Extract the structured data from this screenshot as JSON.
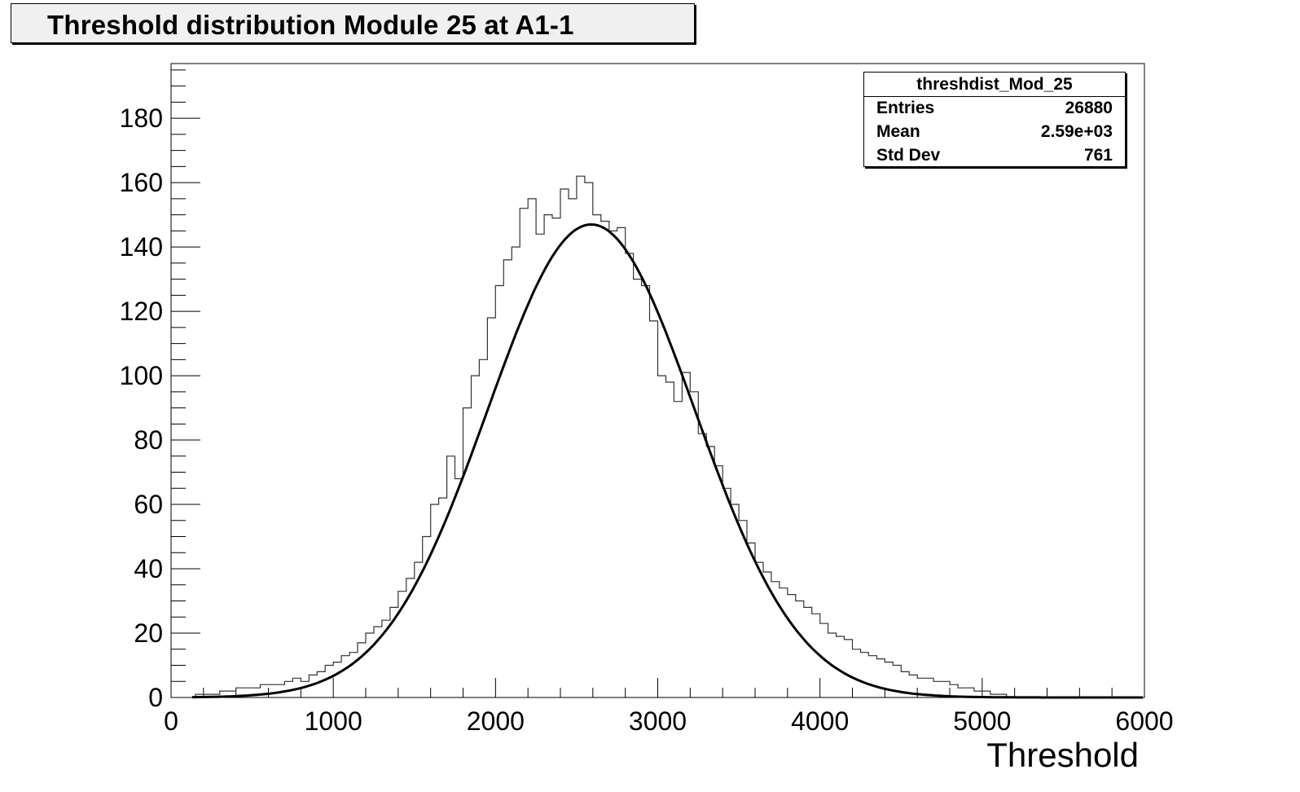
{
  "title": "Threshold distribution Module 25 at A1-1",
  "stats": {
    "name": "threshdist_Mod_25",
    "rows": [
      {
        "key": "Entries",
        "value": "26880"
      },
      {
        "key": "Mean",
        "value": "2.59e+03"
      },
      {
        "key": "Std Dev",
        "value": "761"
      }
    ]
  },
  "chart_data": {
    "type": "line",
    "title": "Threshold distribution Module 25 at A1-1",
    "xlabel": "Threshold",
    "ylabel": "",
    "xlim": [
      0,
      6000
    ],
    "ylim": [
      0,
      197
    ],
    "x_ticks": [
      0,
      1000,
      2000,
      3000,
      4000,
      5000,
      6000
    ],
    "y_ticks": [
      0,
      20,
      40,
      60,
      80,
      100,
      120,
      140,
      160,
      180
    ],
    "grid": false,
    "series": [
      {
        "style": "histogram",
        "bin_width": 50,
        "x": [
          100,
          150,
          200,
          250,
          300,
          350,
          400,
          450,
          500,
          550,
          600,
          650,
          700,
          750,
          800,
          850,
          900,
          950,
          1000,
          1050,
          1100,
          1150,
          1200,
          1250,
          1300,
          1350,
          1400,
          1450,
          1500,
          1550,
          1600,
          1650,
          1700,
          1750,
          1800,
          1850,
          1900,
          1950,
          2000,
          2050,
          2100,
          2150,
          2200,
          2250,
          2300,
          2350,
          2400,
          2450,
          2500,
          2550,
          2600,
          2650,
          2700,
          2750,
          2800,
          2850,
          2900,
          2950,
          3000,
          3050,
          3100,
          3150,
          3200,
          3250,
          3300,
          3350,
          3400,
          3450,
          3500,
          3550,
          3600,
          3650,
          3700,
          3750,
          3800,
          3850,
          3900,
          3950,
          4000,
          4050,
          4100,
          4150,
          4200,
          4250,
          4300,
          4350,
          4400,
          4450,
          4500,
          4550,
          4600,
          4650,
          4700,
          4750,
          4800,
          4850,
          4900,
          4950,
          5000,
          5050,
          5100,
          5150,
          5200
        ],
        "values": [
          0,
          1,
          1,
          1,
          2,
          2,
          3,
          3,
          3,
          4,
          4,
          4,
          5,
          6,
          5,
          7,
          8,
          10,
          11,
          13,
          14,
          17,
          20,
          22,
          24,
          28,
          33,
          37,
          42,
          50,
          60,
          62,
          75,
          68,
          90,
          100,
          105,
          118,
          128,
          136,
          140,
          152,
          155,
          144,
          150,
          149,
          158,
          155,
          162,
          160,
          150,
          148,
          145,
          146,
          138,
          130,
          128,
          117,
          100,
          98,
          92,
          101,
          95,
          82,
          78,
          72,
          65,
          60,
          55,
          48,
          42,
          39,
          36,
          34,
          32,
          30,
          28,
          26,
          23,
          20,
          19,
          18,
          15,
          14,
          13,
          12,
          11,
          10,
          8,
          7,
          6,
          6,
          5,
          5,
          4,
          3,
          3,
          2,
          2,
          1,
          1,
          0,
          0
        ]
      },
      {
        "style": "fit",
        "function": "gaussian",
        "amplitude": 147,
        "mean": 2590,
        "sigma": 640,
        "x_range": [
          130,
          5990
        ]
      }
    ],
    "annotations": [
      "threshdist_Mod_25",
      "Entries 26880",
      "Mean 2.59e+03",
      "Std Dev 761"
    ]
  }
}
